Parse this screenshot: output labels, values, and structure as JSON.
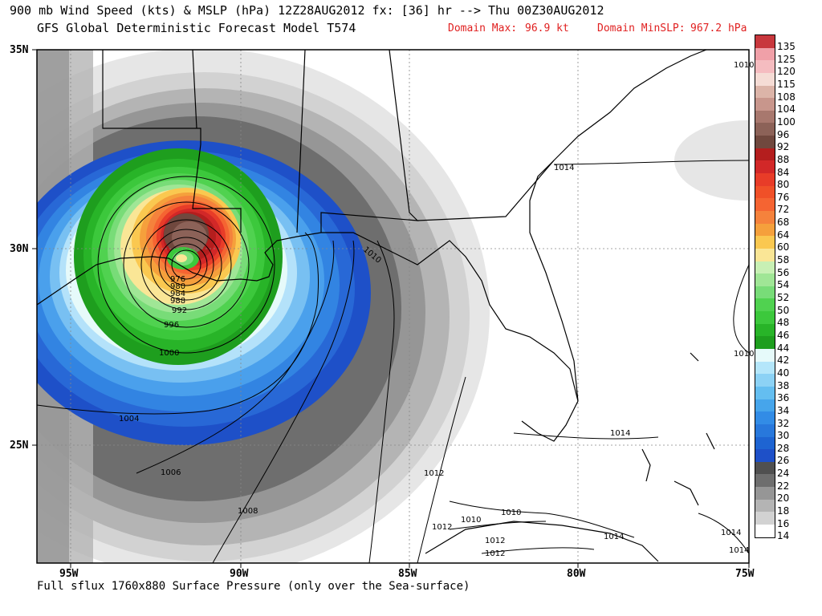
{
  "header": {
    "title": "900 mb Wind Speed (kts) & MSLP (hPa) 12Z28AUG2012 fx: [36] hr --> Thu 00Z30AUG2012",
    "model": "GFS Global Deterministic Forecast Model T574",
    "domain_max_label": "Domain Max:",
    "domain_max_value": "96.9 kt",
    "domain_minslp_label": "Domain MinSLP:",
    "domain_minslp_value": "967.2 hPa"
  },
  "footer": {
    "text": "Full sflux 1760x880 Surface Pressure (only over the Sea-surface)"
  },
  "axes": {
    "lat_labels": [
      "35N",
      "30N",
      "25N"
    ],
    "lon_labels": [
      "95W",
      "90W",
      "85W",
      "80W",
      "75W"
    ]
  },
  "colorbar": {
    "levels": [
      "135",
      "125",
      "120",
      "115",
      "108",
      "104",
      "100",
      "96",
      "92",
      "88",
      "84",
      "80",
      "76",
      "72",
      "68",
      "64",
      "60",
      "58",
      "56",
      "54",
      "52",
      "50",
      "48",
      "46",
      "44",
      "42",
      "40",
      "38",
      "36",
      "34",
      "32",
      "30",
      "28",
      "26",
      "24",
      "22",
      "20",
      "18",
      "16",
      "14"
    ],
    "colors": [
      "#c8373d",
      "#f0a0a8",
      "#f5bcc0",
      "#f5dcd5",
      "#dcb4a8",
      "#c8968c",
      "#a8786e",
      "#8c6258",
      "#70483e",
      "#b41e1e",
      "#d22828",
      "#e83c28",
      "#f05028",
      "#f56432",
      "#f5823c",
      "#f5a03c",
      "#fac850",
      "#fae696",
      "#c8f0b4",
      "#a0e696",
      "#78dc78",
      "#50d250",
      "#3cc83c",
      "#28b428",
      "#1e9e1e",
      "#e6fafa",
      "#b4e6fa",
      "#8cd2f5",
      "#64bef0",
      "#46a5eb",
      "#328ce6",
      "#2878dc",
      "#1e64d2",
      "#1e50c8",
      "#505050",
      "#6e6e6e",
      "#969696",
      "#b4b4b4",
      "#d2d2d2",
      "#ffffff"
    ]
  },
  "map": {
    "isobar_labels": [
      "976",
      "980",
      "984",
      "988",
      "992",
      "996",
      "1000",
      "1004",
      "1006",
      "1008",
      "1010",
      "1012",
      "1012",
      "1012",
      "1012",
      "1010",
      "1010",
      "1014",
      "1014",
      "1014",
      "1014",
      "1014",
      "1010",
      "1010"
    ]
  }
}
